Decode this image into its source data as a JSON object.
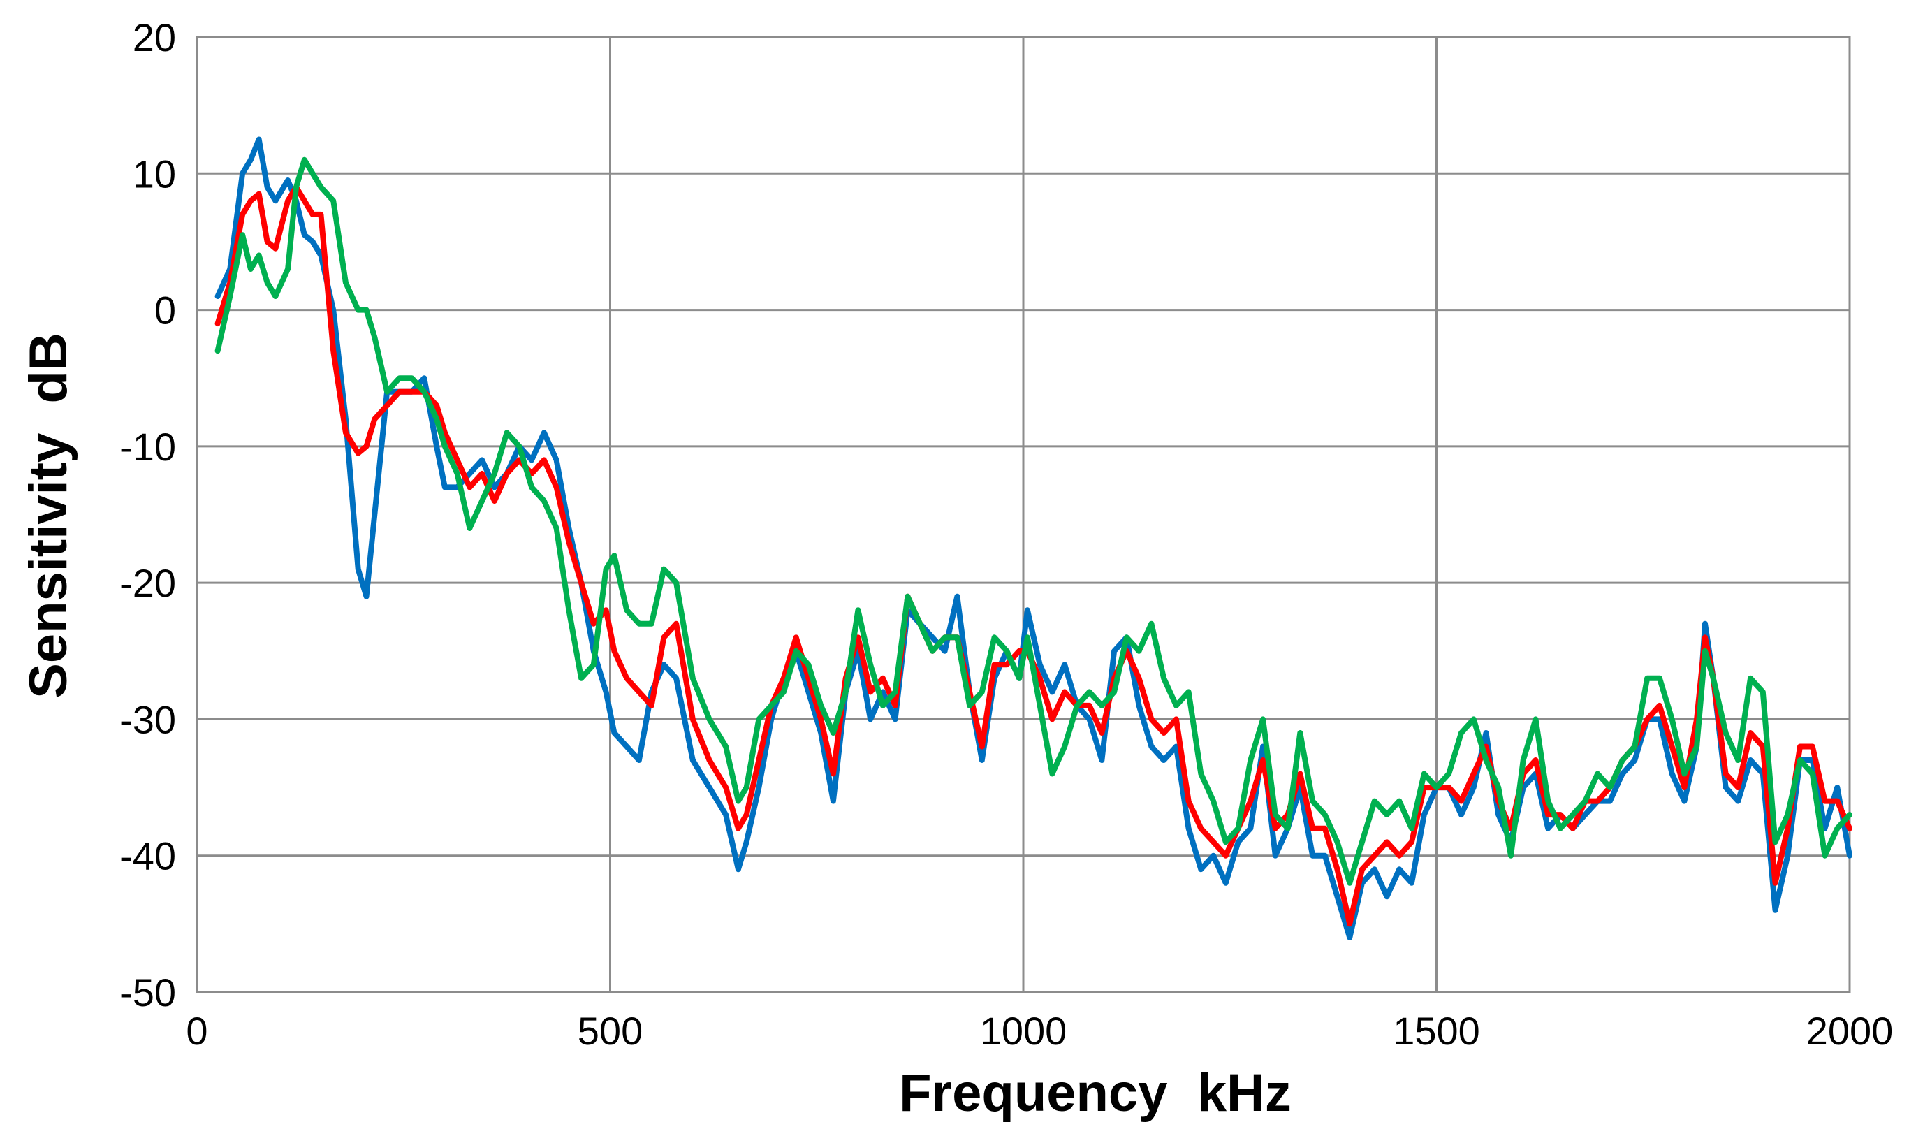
{
  "chart_data": {
    "type": "line",
    "xlabel": "Frequency  kHz",
    "ylabel": "Sensitivity  dB",
    "xlim": [
      0,
      2000
    ],
    "ylim": [
      -50,
      20
    ],
    "xticks": [
      0,
      500,
      1000,
      1500,
      2000
    ],
    "yticks": [
      20,
      10,
      0,
      -10,
      -20,
      -30,
      -40,
      -50
    ],
    "grid": true,
    "legend": "none",
    "series": [
      {
        "color": "#0070c0",
        "x": [
          25,
          40,
          55,
          65,
          75,
          85,
          95,
          110,
          120,
          130,
          140,
          150,
          165,
          180,
          195,
          205,
          215,
          230,
          245,
          260,
          275,
          290,
          300,
          315,
          330,
          345,
          360,
          375,
          390,
          405,
          420,
          435,
          450,
          465,
          480,
          495,
          505,
          520,
          535,
          550,
          565,
          580,
          600,
          620,
          640,
          655,
          665,
          680,
          695,
          710,
          725,
          740,
          755,
          770,
          785,
          800,
          815,
          830,
          845,
          860,
          875,
          890,
          905,
          920,
          935,
          950,
          965,
          980,
          995,
          1005,
          1020,
          1035,
          1050,
          1065,
          1080,
          1095,
          1110,
          1125,
          1140,
          1155,
          1170,
          1185,
          1200,
          1215,
          1230,
          1245,
          1260,
          1275,
          1290,
          1305,
          1320,
          1335,
          1350,
          1365,
          1380,
          1395,
          1410,
          1425,
          1440,
          1455,
          1470,
          1485,
          1500,
          1515,
          1530,
          1545,
          1560,
          1575,
          1590,
          1605,
          1620,
          1635,
          1650,
          1665,
          1680,
          1695,
          1710,
          1725,
          1740,
          1755,
          1770,
          1785,
          1800,
          1815,
          1825,
          1835,
          1850,
          1865,
          1880,
          1895,
          1910,
          1925,
          1940,
          1955,
          1970,
          1985,
          2000
        ],
        "y": [
          1,
          3,
          10,
          11,
          12.5,
          9,
          8,
          9.5,
          8,
          5.5,
          5,
          4,
          0,
          -8,
          -19,
          -21,
          -15,
          -6,
          -6,
          -6,
          -5,
          -10,
          -13,
          -13,
          -12,
          -11,
          -13,
          -12,
          -10,
          -11,
          -9,
          -11,
          -16,
          -20,
          -25,
          -28,
          -31,
          -32,
          -33,
          -28,
          -26,
          -27,
          -33,
          -35,
          -37,
          -41,
          -39,
          -35,
          -30,
          -27,
          -25,
          -28,
          -31,
          -36,
          -28,
          -25,
          -30,
          -28,
          -30,
          -22,
          -23,
          -24,
          -25,
          -21,
          -28,
          -33,
          -27,
          -25,
          -27,
          -22,
          -26,
          -28,
          -26,
          -29,
          -30,
          -33,
          -25,
          -24,
          -29,
          -32,
          -33,
          -32,
          -38,
          -41,
          -40,
          -42,
          -39,
          -38,
          -32,
          -40,
          -38,
          -35,
          -40,
          -40,
          -43,
          -46,
          -42,
          -41,
          -43,
          -41,
          -42,
          -37,
          -35,
          -35,
          -37,
          -35,
          -31,
          -37,
          -39,
          -35,
          -34,
          -38,
          -37,
          -38,
          -37,
          -36,
          -36,
          -34,
          -33,
          -30,
          -30,
          -34,
          -36,
          -32,
          -23,
          -27,
          -35,
          -36,
          -33,
          -34,
          -44,
          -40,
          -33,
          -33,
          -38,
          -35,
          -40
        ]
      },
      {
        "color": "#ff0000",
        "x": [
          25,
          40,
          55,
          65,
          75,
          85,
          95,
          110,
          120,
          130,
          140,
          150,
          165,
          180,
          195,
          205,
          215,
          230,
          245,
          260,
          275,
          290,
          300,
          315,
          330,
          345,
          360,
          375,
          390,
          405,
          420,
          435,
          450,
          465,
          480,
          495,
          505,
          520,
          535,
          550,
          565,
          580,
          600,
          620,
          640,
          655,
          665,
          680,
          695,
          710,
          725,
          740,
          755,
          770,
          785,
          800,
          815,
          830,
          845,
          860,
          875,
          890,
          905,
          920,
          935,
          950,
          965,
          980,
          995,
          1005,
          1020,
          1035,
          1050,
          1065,
          1080,
          1095,
          1110,
          1125,
          1140,
          1155,
          1170,
          1185,
          1200,
          1215,
          1230,
          1245,
          1260,
          1275,
          1290,
          1305,
          1320,
          1335,
          1350,
          1365,
          1380,
          1395,
          1410,
          1425,
          1440,
          1455,
          1470,
          1485,
          1500,
          1515,
          1530,
          1545,
          1560,
          1575,
          1590,
          1605,
          1620,
          1635,
          1650,
          1665,
          1680,
          1695,
          1710,
          1725,
          1740,
          1755,
          1770,
          1785,
          1800,
          1815,
          1825,
          1835,
          1850,
          1865,
          1880,
          1895,
          1910,
          1925,
          1940,
          1955,
          1970,
          1985,
          2000
        ],
        "y": [
          -1,
          2,
          7,
          8,
          8.5,
          5,
          4.5,
          8,
          9,
          8,
          7,
          7,
          -3,
          -9,
          -10.5,
          -10,
          -8,
          -7,
          -6,
          -6,
          -6,
          -7,
          -9,
          -11,
          -13,
          -12,
          -14,
          -12,
          -11,
          -12,
          -11,
          -13,
          -17,
          -20,
          -23,
          -22,
          -25,
          -27,
          -28,
          -29,
          -24,
          -23,
          -30,
          -33,
          -35,
          -38,
          -37,
          -33,
          -29,
          -27,
          -24,
          -27,
          -30,
          -34,
          -27,
          -24,
          -28,
          -27,
          -29,
          -21,
          -23,
          -25,
          -24,
          -24,
          -28,
          -32,
          -26,
          -26,
          -25,
          -25,
          -27,
          -30,
          -28,
          -29,
          -29,
          -31,
          -27,
          -25,
          -27,
          -30,
          -31,
          -30,
          -36,
          -38,
          -39,
          -40,
          -38,
          -36,
          -33,
          -38,
          -37,
          -34,
          -38,
          -38,
          -41,
          -45,
          -41,
          -40,
          -39,
          -40,
          -39,
          -35,
          -35,
          -35,
          -36,
          -34,
          -32,
          -36,
          -38,
          -34,
          -33,
          -37,
          -37,
          -38,
          -36,
          -36,
          -35,
          -33,
          -32,
          -30,
          -29,
          -32,
          -35,
          -30,
          -24,
          -27,
          -34,
          -35,
          -31,
          -32,
          -42,
          -38,
          -32,
          -32,
          -36,
          -36,
          -38
        ]
      },
      {
        "color": "#00b050",
        "x": [
          25,
          40,
          55,
          65,
          75,
          85,
          95,
          110,
          120,
          130,
          140,
          150,
          165,
          180,
          195,
          205,
          215,
          230,
          245,
          260,
          275,
          290,
          300,
          315,
          330,
          345,
          360,
          375,
          390,
          405,
          420,
          435,
          450,
          465,
          480,
          495,
          505,
          520,
          535,
          550,
          565,
          580,
          600,
          620,
          640,
          655,
          665,
          680,
          695,
          710,
          725,
          740,
          755,
          770,
          785,
          800,
          815,
          830,
          845,
          860,
          875,
          890,
          905,
          920,
          935,
          950,
          965,
          980,
          995,
          1005,
          1020,
          1035,
          1050,
          1065,
          1080,
          1095,
          1110,
          1125,
          1140,
          1155,
          1170,
          1185,
          1200,
          1215,
          1230,
          1245,
          1260,
          1275,
          1290,
          1305,
          1320,
          1335,
          1350,
          1365,
          1380,
          1395,
          1410,
          1425,
          1440,
          1455,
          1470,
          1485,
          1500,
          1515,
          1530,
          1545,
          1560,
          1575,
          1590,
          1605,
          1620,
          1635,
          1650,
          1665,
          1680,
          1695,
          1710,
          1725,
          1740,
          1755,
          1770,
          1785,
          1800,
          1815,
          1825,
          1835,
          1850,
          1865,
          1880,
          1895,
          1910,
          1925,
          1940,
          1955,
          1970,
          1985,
          2000
        ],
        "y": [
          -3,
          1,
          5.5,
          3,
          4,
          2,
          1,
          3,
          9,
          11,
          10,
          9,
          8,
          2,
          0,
          0,
          -2,
          -6,
          -5,
          -5,
          -6,
          -8,
          -10,
          -12,
          -16,
          -14,
          -12,
          -9,
          -10,
          -13,
          -14,
          -16,
          -22,
          -27,
          -26,
          -19,
          -18,
          -22,
          -23,
          -23,
          -19,
          -20,
          -27,
          -30,
          -32,
          -36,
          -35,
          -30,
          -29,
          -28,
          -25,
          -26,
          -29,
          -31,
          -28,
          -22,
          -26,
          -29,
          -28,
          -21,
          -23,
          -25,
          -24,
          -24,
          -29,
          -28,
          -24,
          -25,
          -27,
          -24,
          -29,
          -34,
          -32,
          -29,
          -28,
          -29,
          -28,
          -24,
          -25,
          -23,
          -27,
          -29,
          -28,
          -34,
          -36,
          -39,
          -38,
          -33,
          -30,
          -37,
          -38,
          -31,
          -36,
          -37,
          -39,
          -42,
          -39,
          -36,
          -37,
          -36,
          -38,
          -34,
          -35,
          -34,
          -31,
          -30,
          -33,
          -35,
          -40,
          -33,
          -30,
          -36,
          -38,
          -37,
          -36,
          -34,
          -35,
          -33,
          -32,
          -27,
          -27,
          -30,
          -34,
          -32,
          -25,
          -27,
          -31,
          -33,
          -27,
          -28,
          -39,
          -37,
          -33,
          -34,
          -40,
          -38,
          -37
        ]
      }
    ]
  }
}
